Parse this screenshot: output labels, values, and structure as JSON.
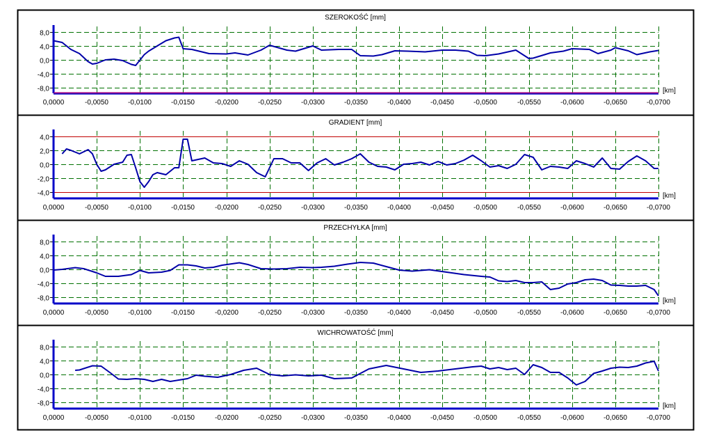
{
  "colors": {
    "background": "#ffffff",
    "frame": "#000000",
    "grid": "#007000",
    "series": "#0000a8",
    "baseline_blue": "#0000c8",
    "baseline_magenta": "#a00080",
    "limit": "#c00000"
  },
  "chart_data": [
    {
      "type": "line",
      "title": "SZEROKOŚĆ [mm]",
      "xunit": "[km]",
      "xlim": [
        0,
        -0.07
      ],
      "ylim": [
        -8,
        8
      ],
      "x_ticks": [
        0,
        -0.005,
        -0.01,
        -0.015,
        -0.02,
        -0.025,
        -0.03,
        -0.035,
        -0.04,
        -0.045,
        -0.05,
        -0.055,
        -0.06,
        -0.065,
        -0.07
      ],
      "x_tick_labels": [
        "0,0000",
        "-0,0050",
        "-0,0100",
        "-0,0150",
        "-0,0200",
        "-0,0250",
        "-0,0300",
        "-0,0350",
        "-0,0400",
        "-0,0450",
        "-0,0500",
        "-0,0550",
        "-0,0600",
        "-0,0650",
        "-0,0700"
      ],
      "y_ticks": [
        8,
        4,
        0,
        -4,
        -8
      ],
      "y_tick_labels": [
        "8,0",
        "4,0",
        "0,0",
        "-4,0",
        "-8,0"
      ],
      "grid": true,
      "limits": [],
      "baseline_style": "magenta",
      "series": [
        {
          "x": [
            0,
            -0.001,
            -0.002,
            -0.003,
            -0.004,
            -0.0045,
            -0.005,
            -0.006,
            -0.007,
            -0.008,
            -0.009,
            -0.0095,
            -0.0105,
            -0.011,
            -0.012,
            -0.013,
            -0.014,
            -0.0145,
            -0.015,
            -0.016,
            -0.018,
            -0.02,
            -0.021,
            -0.0225,
            -0.024,
            -0.025,
            -0.027,
            -0.028,
            -0.03,
            -0.031,
            -0.033,
            -0.0345,
            -0.0355,
            -0.037,
            -0.038,
            -0.0395,
            -0.041,
            -0.043,
            -0.045,
            -0.0465,
            -0.048,
            -0.049,
            -0.05,
            -0.0515,
            -0.0535,
            -0.055,
            -0.0555,
            -0.0575,
            -0.059,
            -0.06,
            -0.062,
            -0.063,
            -0.0645,
            -0.065,
            -0.0665,
            -0.0675,
            -0.069,
            -0.07
          ],
          "values": [
            5.5,
            5.0,
            3.0,
            1.8,
            -0.5,
            -1.2,
            -1.0,
            0.0,
            0.2,
            -0.2,
            -1.3,
            -1.6,
            1.5,
            2.5,
            4.0,
            5.5,
            6.3,
            6.5,
            3.2,
            3.0,
            1.8,
            1.7,
            2.0,
            1.4,
            2.8,
            4.2,
            2.8,
            2.5,
            4.0,
            2.8,
            3.0,
            3.0,
            1.2,
            1.1,
            1.5,
            2.6,
            2.5,
            2.3,
            2.8,
            2.8,
            2.5,
            1.3,
            1.2,
            1.7,
            2.8,
            0.4,
            0.5,
            2.0,
            2.5,
            3.2,
            3.0,
            1.8,
            2.8,
            3.5,
            2.6,
            1.5,
            2.3,
            2.7
          ]
        }
      ]
    },
    {
      "type": "line",
      "title": "GRADIENT [mm]",
      "xunit": "[km]",
      "xlim": [
        0,
        -0.07
      ],
      "ylim": [
        -5,
        5
      ],
      "x_ticks": [
        0,
        -0.005,
        -0.01,
        -0.015,
        -0.02,
        -0.025,
        -0.03,
        -0.035,
        -0.04,
        -0.045,
        -0.05,
        -0.055,
        -0.06,
        -0.065,
        -0.07
      ],
      "x_tick_labels": [
        "0,0000",
        "-0,0050",
        "-0,0100",
        "-0,0150",
        "-0,0200",
        "-0,0250",
        "-0,0300",
        "-0,0350",
        "-0,0400",
        "-0,0450",
        "-0,0500",
        "-0,0550",
        "-0,0600",
        "-0,0650",
        "-0,0700"
      ],
      "y_ticks": [
        4,
        2,
        0,
        -2,
        -4
      ],
      "y_tick_labels": [
        "4,0",
        "2,0",
        "0,0",
        "-2,0",
        "-4,0"
      ],
      "grid": true,
      "limits": [
        4,
        -4
      ],
      "baseline_style": "blue",
      "series": [
        {
          "x": [
            -0.001,
            -0.0015,
            -0.002,
            -0.003,
            -0.004,
            -0.0045,
            -0.005,
            -0.0055,
            -0.006,
            -0.007,
            -0.008,
            -0.0085,
            -0.009,
            -0.0095,
            -0.01,
            -0.0105,
            -0.011,
            -0.0115,
            -0.012,
            -0.013,
            -0.0135,
            -0.014,
            -0.0145,
            -0.015,
            -0.0155,
            -0.016,
            -0.0175,
            -0.0185,
            -0.0195,
            -0.0205,
            -0.0215,
            -0.0225,
            -0.0235,
            -0.0245,
            -0.0255,
            -0.0265,
            -0.0275,
            -0.0285,
            -0.0295,
            -0.0305,
            -0.0315,
            -0.0325,
            -0.0335,
            -0.0345,
            -0.0355,
            -0.0365,
            -0.0375,
            -0.0385,
            -0.0395,
            -0.0405,
            -0.0415,
            -0.0425,
            -0.0435,
            -0.0445,
            -0.0455,
            -0.0465,
            -0.0475,
            -0.0485,
            -0.0495,
            -0.0505,
            -0.0515,
            -0.0525,
            -0.0535,
            -0.0545,
            -0.0555,
            -0.0565,
            -0.0575,
            -0.0585,
            -0.0595,
            -0.0605,
            -0.0615,
            -0.0625,
            -0.0635,
            -0.0645,
            -0.0655,
            -0.0665,
            -0.0675,
            -0.0685,
            -0.0695,
            -0.07
          ],
          "values": [
            1.5,
            2.2,
            2.0,
            1.5,
            2.1,
            1.5,
            0.0,
            -1.0,
            -0.8,
            0.0,
            0.3,
            1.3,
            1.4,
            -0.5,
            -2.5,
            -3.3,
            -2.5,
            -1.5,
            -1.2,
            -1.5,
            -1.0,
            -0.5,
            -0.5,
            3.6,
            3.6,
            0.5,
            0.9,
            0.2,
            0.1,
            -0.3,
            0.5,
            0.0,
            -1.2,
            -1.8,
            0.8,
            0.8,
            0.2,
            0.2,
            -0.9,
            0.2,
            0.8,
            -0.1,
            0.3,
            0.8,
            1.5,
            0.3,
            -0.3,
            -0.4,
            -0.8,
            0.0,
            0.1,
            0.3,
            -0.1,
            0.4,
            -0.1,
            0.1,
            0.6,
            1.3,
            0.5,
            -0.4,
            -0.2,
            -0.6,
            0.0,
            1.4,
            1.0,
            -0.8,
            -0.3,
            -0.4,
            -0.6,
            0.5,
            0.1,
            -0.4,
            0.9,
            -0.6,
            -0.7,
            0.4,
            1.2,
            0.5,
            -0.6,
            -0.6
          ]
        }
      ]
    },
    {
      "type": "line",
      "title": "PRZECHYŁKA [mm]",
      "xunit": "[km]",
      "xlim": [
        0,
        -0.07
      ],
      "ylim": [
        -10,
        10
      ],
      "x_ticks": [
        0,
        -0.005,
        -0.01,
        -0.015,
        -0.02,
        -0.025,
        -0.03,
        -0.035,
        -0.04,
        -0.045,
        -0.05,
        -0.055,
        -0.06,
        -0.065,
        -0.07
      ],
      "x_tick_labels": [
        "0,0000",
        "-0,0050",
        "-0,0100",
        "-0,0150",
        "-0,0200",
        "-0,0250",
        "-0,0300",
        "-0,0350",
        "-0,0400",
        "-0,0450",
        "-0,0500",
        "-0,0550",
        "-0,0600",
        "-0,0650",
        "-0,0700"
      ],
      "y_ticks": [
        8,
        4,
        0,
        -4,
        -8
      ],
      "y_tick_labels": [
        "8,0",
        "4,0",
        "0,0",
        "-4,0",
        "-8,0"
      ],
      "grid": true,
      "limits": [],
      "baseline_style": "blue",
      "series": [
        {
          "x": [
            0,
            -0.001,
            -0.0025,
            -0.0035,
            -0.005,
            -0.006,
            -0.0075,
            -0.009,
            -0.01,
            -0.011,
            -0.0125,
            -0.0135,
            -0.0145,
            -0.0155,
            -0.0165,
            -0.0175,
            -0.0185,
            -0.0195,
            -0.0215,
            -0.0225,
            -0.024,
            -0.0255,
            -0.027,
            -0.0285,
            -0.03,
            -0.031,
            -0.0325,
            -0.034,
            -0.0355,
            -0.037,
            -0.0385,
            -0.04,
            -0.0415,
            -0.0435,
            -0.0455,
            -0.0475,
            -0.0495,
            -0.0505,
            -0.0515,
            -0.0525,
            -0.0535,
            -0.0545,
            -0.0555,
            -0.0565,
            -0.0575,
            -0.0585,
            -0.0595,
            -0.0605,
            -0.0615,
            -0.0625,
            -0.0635,
            -0.0645,
            -0.0655,
            -0.0665,
            -0.0675,
            -0.0685,
            -0.0695,
            -0.07
          ],
          "values": [
            -0.2,
            0.0,
            0.5,
            0.2,
            -1.0,
            -2.0,
            -2.0,
            -1.5,
            -0.3,
            -1.0,
            -0.8,
            -0.3,
            1.3,
            1.3,
            1.0,
            0.4,
            0.6,
            1.2,
            1.9,
            1.4,
            0.2,
            0.1,
            0.2,
            0.6,
            0.5,
            0.6,
            0.9,
            1.5,
            2.0,
            1.8,
            0.8,
            -0.2,
            -0.5,
            -0.1,
            -0.8,
            -1.5,
            -2.0,
            -2.2,
            -3.3,
            -3.5,
            -3.2,
            -3.8,
            -3.8,
            -3.6,
            -5.8,
            -5.4,
            -4.2,
            -3.8,
            -3.0,
            -2.8,
            -3.2,
            -4.5,
            -4.6,
            -4.8,
            -4.8,
            -4.6,
            -5.8,
            -7.6
          ]
        }
      ]
    },
    {
      "type": "line",
      "title": "WICHROWATOŚĆ [mm]",
      "xunit": "[km]",
      "xlim": [
        0,
        -0.07
      ],
      "ylim": [
        -10,
        10
      ],
      "x_ticks": [
        0,
        -0.005,
        -0.01,
        -0.015,
        -0.02,
        -0.025,
        -0.03,
        -0.035,
        -0.04,
        -0.045,
        -0.05,
        -0.055,
        -0.06,
        -0.065,
        -0.07
      ],
      "x_tick_labels": [
        "0,0000",
        "-0,0050",
        "-0,0100",
        "-0,0150",
        "-0,0200",
        "-0,0250",
        "-0,0300",
        "-0,0350",
        "-0,0400",
        "-0,0450",
        "-0,0500",
        "-0,0550",
        "-0,0600",
        "-0,0650",
        "-0,0700"
      ],
      "y_ticks": [
        8,
        4,
        0,
        -4,
        -8
      ],
      "y_tick_labels": [
        "8,0",
        "4,0",
        "0,0",
        "-4,0",
        "-8,0"
      ],
      "grid": true,
      "limits": [],
      "baseline_style": "blue",
      "series": [
        {
          "x": [
            -0.0025,
            -0.003,
            -0.0045,
            -0.0055,
            -0.0065,
            -0.0075,
            -0.0085,
            -0.0095,
            -0.0105,
            -0.0115,
            -0.0125,
            -0.0135,
            -0.0145,
            -0.0155,
            -0.0165,
            -0.0175,
            -0.019,
            -0.0205,
            -0.022,
            -0.0235,
            -0.025,
            -0.0265,
            -0.028,
            -0.0295,
            -0.031,
            -0.0325,
            -0.0345,
            -0.0365,
            -0.0385,
            -0.0405,
            -0.0425,
            -0.0445,
            -0.0465,
            -0.0485,
            -0.0495,
            -0.0505,
            -0.0515,
            -0.0525,
            -0.0535,
            -0.0545,
            -0.0555,
            -0.0565,
            -0.0575,
            -0.0585,
            -0.0595,
            -0.0605,
            -0.0615,
            -0.0625,
            -0.0635,
            -0.0645,
            -0.0655,
            -0.0665,
            -0.0675,
            -0.0685,
            -0.0695,
            -0.07
          ],
          "values": [
            1.2,
            1.3,
            2.5,
            2.4,
            0.6,
            -1.3,
            -1.4,
            -1.2,
            -1.4,
            -2.0,
            -1.4,
            -2.0,
            -1.6,
            -1.2,
            -0.2,
            -0.5,
            -0.8,
            0.0,
            1.2,
            1.8,
            0.0,
            -0.4,
            -0.1,
            -0.4,
            -0.2,
            -1.2,
            -1.0,
            1.6,
            2.6,
            1.6,
            0.6,
            1.0,
            1.6,
            2.2,
            2.4,
            1.6,
            2.0,
            1.4,
            1.8,
            0.0,
            2.8,
            2.0,
            0.6,
            0.6,
            -1.0,
            -3.0,
            -2.0,
            0.3,
            1.0,
            1.8,
            2.1,
            2.0,
            2.4,
            3.3,
            3.8,
            1.0
          ]
        }
      ]
    }
  ]
}
